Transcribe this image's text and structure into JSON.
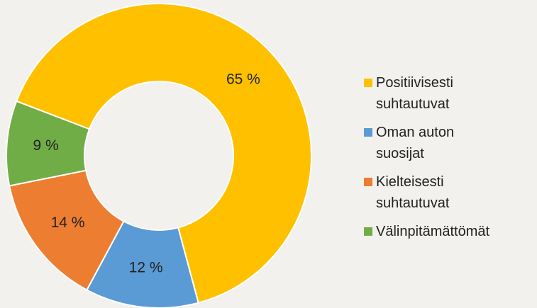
{
  "chart_data": {
    "type": "donut",
    "categories": [
      "Positiivisesti suhtautuvat",
      "Oman auton suosijat",
      "Kielteisesti suhtautuvat",
      "Välinpitämättömät"
    ],
    "values": [
      65,
      12,
      14,
      9
    ],
    "value_labels": [
      "65 %",
      "12 %",
      "14 %",
      "9 %"
    ],
    "colors": [
      "#ffc000",
      "#5b9bd5",
      "#ed7d31",
      "#70ad47"
    ],
    "legend": "right"
  }
}
